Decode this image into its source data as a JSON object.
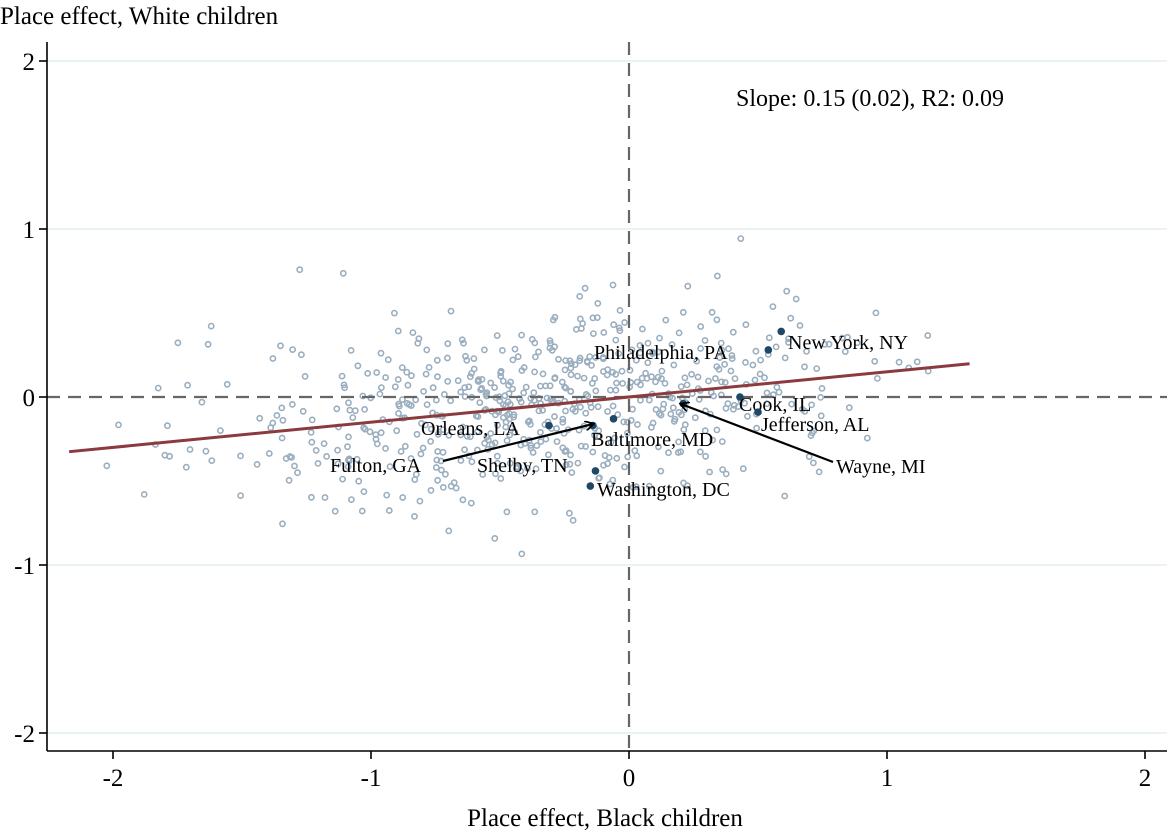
{
  "chart_data": {
    "type": "scatter",
    "xlabel": "Place effect, Black children",
    "ylabel": "Place effect, White children",
    "xlim": [
      -2.25,
      2.1
    ],
    "ylim": [
      -2.1,
      2.1
    ],
    "xticks": [
      -2,
      -1,
      0,
      1,
      2
    ],
    "yticks": [
      -2,
      -1,
      0,
      1,
      2
    ],
    "xtick_labels": [
      "-2",
      "-1",
      "0",
      "1",
      "2"
    ],
    "ytick_labels": [
      "-2",
      "-1",
      "0",
      "1",
      "2"
    ],
    "grid": "horizontal",
    "reference_lines": {
      "x": 0,
      "y": 0,
      "style": "dashed"
    },
    "annotation": "Slope: 0.15 (0.02), R2: 0.09",
    "fit_line": {
      "slope": 0.15,
      "intercept": 0.0,
      "x_range": [
        -2.17,
        1.32
      ],
      "color": "#8b3a3e"
    },
    "colors": {
      "points": "#9aaebf",
      "highlight": "#1f4766",
      "grid": "#e3eeee",
      "refline": "#666666"
    },
    "highlighted": [
      {
        "name": "New York, NY",
        "x": 0.59,
        "y": 0.39
      },
      {
        "name": "Philadelphia, PA",
        "x": 0.54,
        "y": 0.28
      },
      {
        "name": "Cook, IL",
        "x": 0.43,
        "y": 0.0
      },
      {
        "name": "Jefferson, AL",
        "x": 0.5,
        "y": -0.09
      },
      {
        "name": "Wayne, MI",
        "x": 0.21,
        "y": -0.04
      },
      {
        "name": "Baltimore, MD",
        "x": -0.06,
        "y": -0.13
      },
      {
        "name": "Orleans, LA",
        "x": -0.31,
        "y": -0.17
      },
      {
        "name": "Fulton, GA",
        "x": -0.14,
        "y": -0.17
      },
      {
        "name": "Shelby, TN",
        "x": -0.13,
        "y": -0.44
      },
      {
        "name": "Washington, DC",
        "x": -0.15,
        "y": -0.53
      }
    ]
  }
}
